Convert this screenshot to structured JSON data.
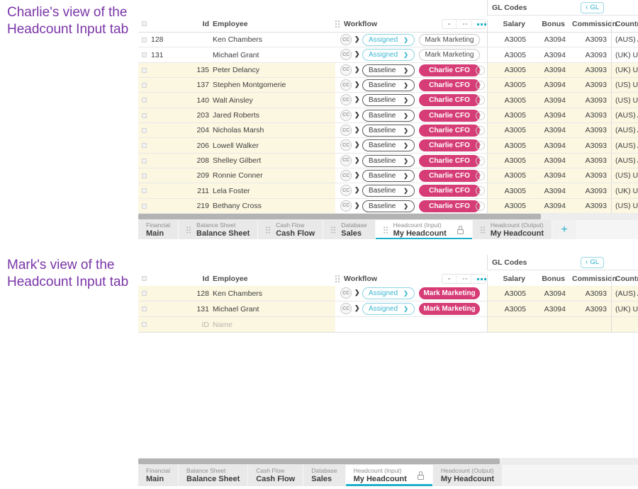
{
  "colors": {
    "teal": "#1fb0c9",
    "pink": "#d63c75",
    "purple": "#7a35a8",
    "row_yellow": "#fbf7e1"
  },
  "icons": {
    "caret_right": "❯",
    "chevron_left": "‹",
    "check": "✓",
    "plus": "+"
  },
  "charlie": {
    "title_line1": "Charlie's view of the",
    "title_line2": "Headcount Input tab",
    "table": {
      "gl_group_label": "GL Codes",
      "gl_button_label": "GL",
      "cc_label": "CC",
      "columns": {
        "id": "Id",
        "employee": "Employee",
        "workflow": "Workflow",
        "salary": "Salary",
        "bonus": "Bonus",
        "commission": "Commission",
        "country": "Country"
      },
      "rows": [
        {
          "id": "128",
          "employee": "Ken Chambers",
          "status": "Assigned",
          "owner": "Mark Marketing",
          "owner_active": false,
          "approved": false,
          "editable": false,
          "id_align": "left",
          "salary": "A3005",
          "bonus": "A3094",
          "commission": "A3093",
          "country": "(AUS) Aust"
        },
        {
          "id": "131",
          "employee": "Michael Grant",
          "status": "Assigned",
          "owner": "Mark Marketing",
          "owner_active": false,
          "approved": false,
          "editable": false,
          "id_align": "left",
          "salary": "A3005",
          "bonus": "A3094",
          "commission": "A3093",
          "country": "(UK) Unite"
        },
        {
          "id": "135",
          "employee": "Peter Delancy",
          "status": "Baseline",
          "owner": "Charlie CFO",
          "owner_active": true,
          "approved": true,
          "editable": true,
          "id_align": "right",
          "salary": "A3005",
          "bonus": "A3094",
          "commission": "A3093",
          "country": "(UK) Unite"
        },
        {
          "id": "137",
          "employee": "Stephen Montgomerie",
          "status": "Baseline",
          "owner": "Charlie CFO",
          "owner_active": true,
          "approved": true,
          "editable": true,
          "id_align": "right",
          "salary": "A3005",
          "bonus": "A3094",
          "commission": "A3093",
          "country": "(US) Unite"
        },
        {
          "id": "140",
          "employee": "Walt Ainsley",
          "status": "Baseline",
          "owner": "Charlie CFO",
          "owner_active": true,
          "approved": true,
          "editable": true,
          "id_align": "right",
          "salary": "A3005",
          "bonus": "A3094",
          "commission": "A3093",
          "country": "(US) Unite"
        },
        {
          "id": "203",
          "employee": "Jared Roberts",
          "status": "Baseline",
          "owner": "Charlie CFO",
          "owner_active": true,
          "approved": true,
          "editable": true,
          "id_align": "right",
          "salary": "A3005",
          "bonus": "A3094",
          "commission": "A3093",
          "country": "(AUS) Aust"
        },
        {
          "id": "204",
          "employee": "Nicholas Marsh",
          "status": "Baseline",
          "owner": "Charlie CFO",
          "owner_active": true,
          "approved": true,
          "editable": true,
          "id_align": "right",
          "salary": "A3005",
          "bonus": "A3094",
          "commission": "A3093",
          "country": "(AUS) Aust"
        },
        {
          "id": "206",
          "employee": "Lowell Walker",
          "status": "Baseline",
          "owner": "Charlie CFO",
          "owner_active": true,
          "approved": true,
          "editable": true,
          "id_align": "right",
          "salary": "A3005",
          "bonus": "A3094",
          "commission": "A3093",
          "country": "(AUS) Aust"
        },
        {
          "id": "208",
          "employee": "Shelley Gilbert",
          "status": "Baseline",
          "owner": "Charlie CFO",
          "owner_active": true,
          "approved": true,
          "editable": true,
          "id_align": "right",
          "salary": "A3005",
          "bonus": "A3094",
          "commission": "A3093",
          "country": "(AUS) Aust"
        },
        {
          "id": "209",
          "employee": "Ronnie Conner",
          "status": "Baseline",
          "owner": "Charlie CFO",
          "owner_active": true,
          "approved": true,
          "editable": true,
          "id_align": "right",
          "salary": "A3005",
          "bonus": "A3094",
          "commission": "A3093",
          "country": "(US) Unite"
        },
        {
          "id": "211",
          "employee": "Lela Foster",
          "status": "Baseline",
          "owner": "Charlie CFO",
          "owner_active": true,
          "approved": true,
          "editable": true,
          "id_align": "right",
          "salary": "A3005",
          "bonus": "A3094",
          "commission": "A3093",
          "country": "(UK) Unite"
        },
        {
          "id": "219",
          "employee": "Bethany Cross",
          "status": "Baseline",
          "owner": "Charlie CFO",
          "owner_active": true,
          "approved": true,
          "editable": true,
          "id_align": "right",
          "salary": "A3005",
          "bonus": "A3094",
          "commission": "A3093",
          "country": "(US) Unite"
        }
      ]
    },
    "tabs": [
      {
        "category": "Financial",
        "name": "Main",
        "active": false,
        "locked": false,
        "draggable": false
      },
      {
        "category": "Balance Sheet",
        "name": "Balance Sheet",
        "active": false,
        "locked": false,
        "draggable": true
      },
      {
        "category": "Cash Flow",
        "name": "Cash Flow",
        "active": false,
        "locked": false,
        "draggable": true
      },
      {
        "category": "Database",
        "name": "Sales",
        "active": false,
        "locked": false,
        "draggable": true
      },
      {
        "category": "Headcount (Input)",
        "name": "My Headcount",
        "active": true,
        "locked": true,
        "draggable": true
      },
      {
        "category": "Headcount (Output)",
        "name": "My Headcount",
        "active": false,
        "locked": false,
        "draggable": true
      }
    ],
    "has_add_tab": true
  },
  "mark": {
    "title_line1": "Mark's view of the",
    "title_line2": "Headcount Input tab",
    "table": {
      "gl_group_label": "GL Codes",
      "gl_button_label": "GL",
      "cc_label": "CC",
      "columns": {
        "id": "Id",
        "employee": "Employee",
        "workflow": "Workflow",
        "salary": "Salary",
        "bonus": "Bonus",
        "commission": "Commission",
        "country": "Country"
      },
      "rows": [
        {
          "id": "128",
          "employee": "Ken Chambers",
          "status": "Assigned",
          "owner": "Mark Marketing",
          "owner_active": true,
          "approved": false,
          "editable": true,
          "id_align": "right",
          "salary": "A3005",
          "bonus": "A3094",
          "commission": "A3093",
          "country": "(AUS) Australia"
        },
        {
          "id": "131",
          "employee": "Michael Grant",
          "status": "Assigned",
          "owner": "Mark Marketing",
          "owner_active": true,
          "approved": false,
          "editable": true,
          "id_align": "right",
          "salary": "A3005",
          "bonus": "A3094",
          "commission": "A3093",
          "country": "(UK) United Ki"
        },
        {
          "id": "ID",
          "employee": "Name",
          "placeholder": true,
          "editable": true,
          "id_align": "right",
          "salary": "",
          "bonus": "",
          "commission": "",
          "country": ""
        }
      ]
    },
    "tabs": [
      {
        "category": "Financial",
        "name": "Main",
        "active": false,
        "locked": false,
        "draggable": false
      },
      {
        "category": "Balance Sheet",
        "name": "Balance Sheet",
        "active": false,
        "locked": false,
        "draggable": false
      },
      {
        "category": "Cash Flow",
        "name": "Cash Flow",
        "active": false,
        "locked": false,
        "draggable": false
      },
      {
        "category": "Database",
        "name": "Sales",
        "active": false,
        "locked": false,
        "draggable": false
      },
      {
        "category": "Headcount (Input)",
        "name": "My Headcount",
        "active": true,
        "locked": true,
        "draggable": false
      },
      {
        "category": "Headcount (Output)",
        "name": "My Headcount",
        "active": false,
        "locked": false,
        "draggable": false
      }
    ],
    "has_add_tab": false
  }
}
